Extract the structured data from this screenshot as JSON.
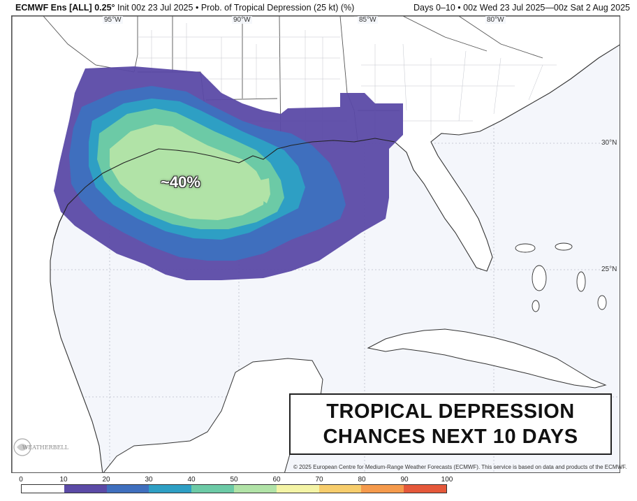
{
  "header": {
    "model": "ECMWF Ens [ALL]",
    "resolution": "0.25",
    "init": "Init 00z 23 Jul 2025",
    "product": "Prob. of Tropical Depression (25 kt) (%)",
    "bullet": "•",
    "days": "Days 0–10",
    "valid": "00z Wed 23 Jul 2025—00z Sat 2 Aug 2025"
  },
  "map": {
    "lon_labels": [
      "95°W",
      "90°W",
      "85°W",
      "80°W"
    ],
    "lat_labels": [
      "30°N",
      "25°N"
    ],
    "callout": "~40%",
    "banner_line1": "TROPICAL DEPRESSION",
    "banner_line2": "CHANCES NEXT 10 DAYS",
    "copyright": "© 2025 European Centre for Medium-Range Weather Forecasts (ECMWF). This service is based on data and products of the ECMWF.",
    "logo_text": "WEATHERBELL",
    "logo_icon": "weatherbell-logo-icon",
    "ocean_color": "#f4f6fb",
    "land_color": "#ffffff"
  },
  "colorbar": {
    "ticks": [
      "0",
      "10",
      "20",
      "30",
      "40",
      "50",
      "60",
      "70",
      "80",
      "90",
      "100"
    ],
    "colors": [
      "#ffffff",
      "#5b4aa6",
      "#3f6fbe",
      "#2e9fc4",
      "#6ccaa6",
      "#b1e3a7",
      "#f4f4a6",
      "#f7cd6c",
      "#f59a4c",
      "#e5583a",
      "#a5103e"
    ]
  }
}
